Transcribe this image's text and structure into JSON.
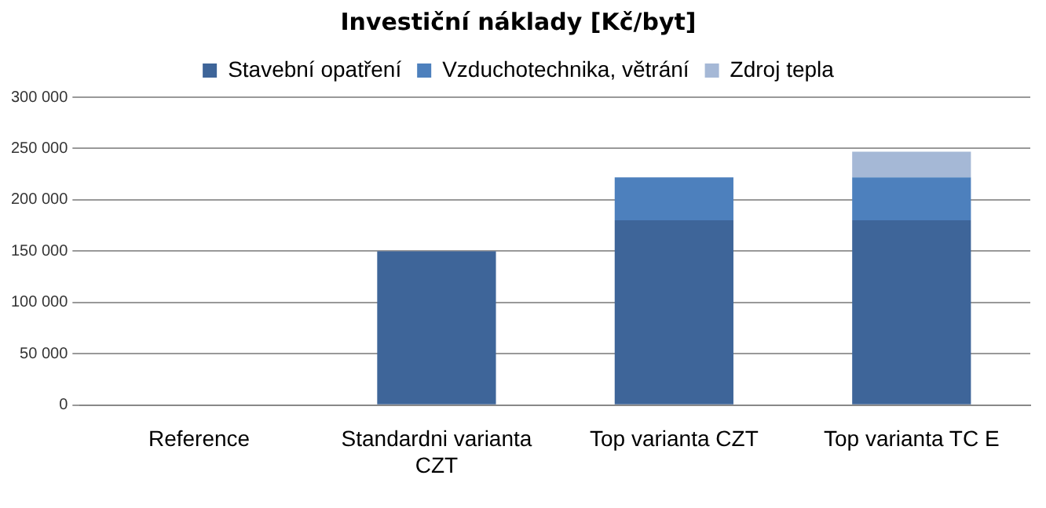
{
  "chart_data": {
    "type": "bar",
    "title": "Investiční náklady [Kč/byt]",
    "categories": [
      "Reference",
      "Standardni varianta CZT",
      "Top varianta CZT",
      "Top varianta TC E"
    ],
    "stacked": true,
    "legend": "top",
    "grid": "y",
    "series": [
      {
        "name": "Stavební opatření",
        "color": "#3e6599",
        "values": [
          0,
          150000,
          180000,
          180000
        ]
      },
      {
        "name": "Vzduchotechnika, větrání",
        "color": "#4d80bd",
        "values": [
          0,
          0,
          42000,
          42000
        ]
      },
      {
        "name": "Zdroj tepla",
        "color": "#a5b8d6",
        "values": [
          0,
          0,
          0,
          25000
        ]
      }
    ],
    "ylim": [
      0,
      300000
    ],
    "yticks": [
      {
        "value": 0,
        "label": "0"
      },
      {
        "value": 50000,
        "label": "50 000"
      },
      {
        "value": 100000,
        "label": "100 000"
      },
      {
        "value": 150000,
        "label": "150 000"
      },
      {
        "value": 200000,
        "label": "200 000"
      },
      {
        "value": 250000,
        "label": "250 000"
      },
      {
        "value": 300000,
        "label": "300 000"
      }
    ]
  }
}
